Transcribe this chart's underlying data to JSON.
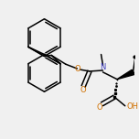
{
  "bg_color": "#f0f0f0",
  "bond_color": "#000000",
  "o_color": "#d07000",
  "n_color": "#4040c0",
  "line_width": 1.1,
  "figsize": [
    1.52,
    1.52
  ],
  "dpi": 100,
  "xlim": [
    0,
    152
  ],
  "ylim": [
    0,
    152
  ]
}
